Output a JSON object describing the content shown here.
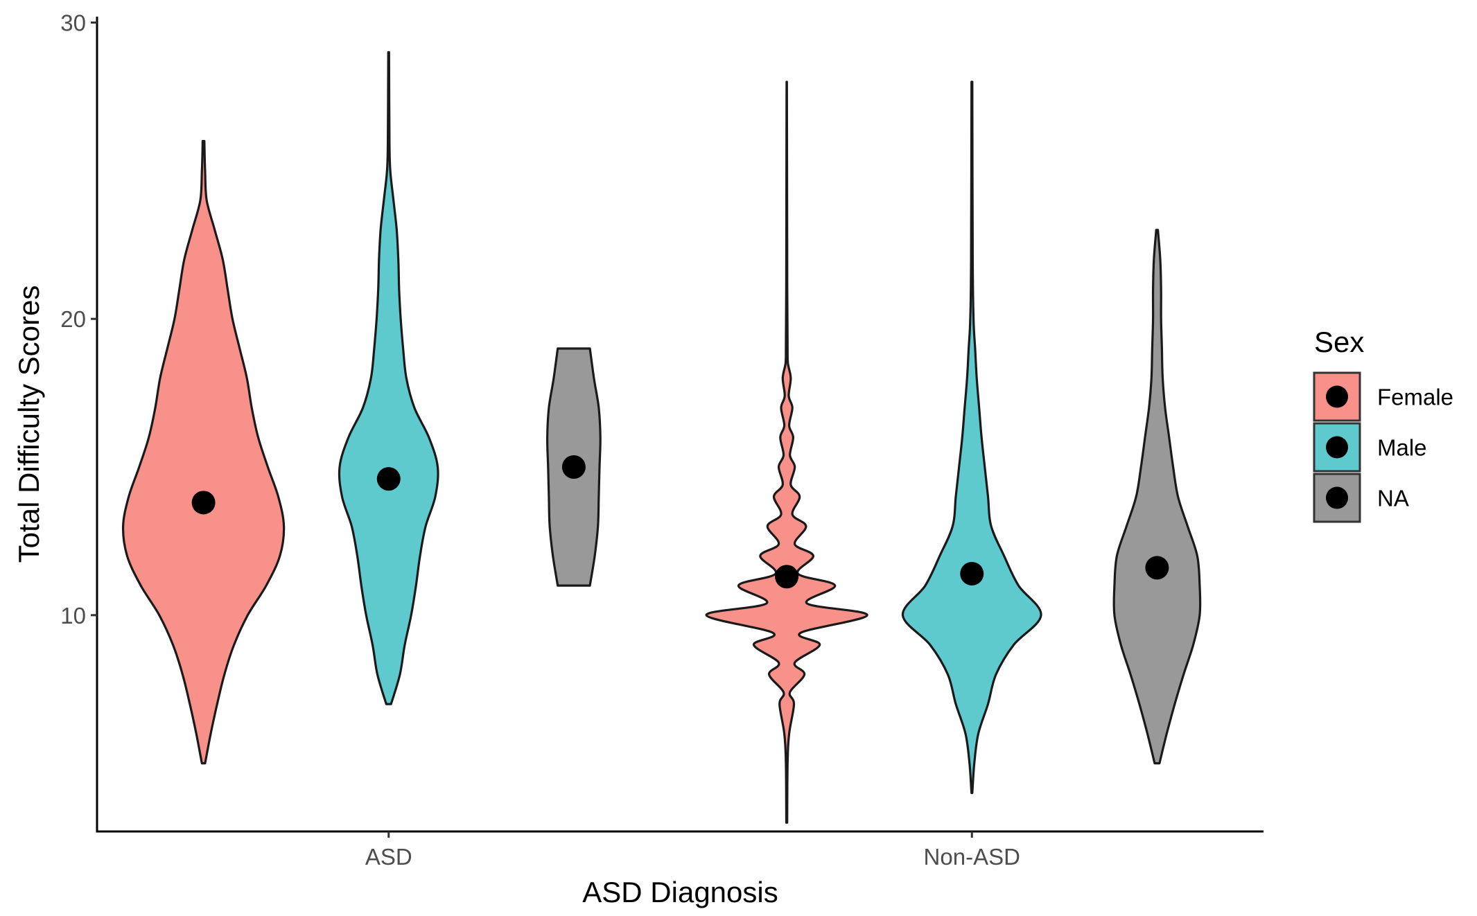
{
  "chart_data": {
    "type": "violin",
    "title": "",
    "xlabel": "ASD Diagnosis",
    "ylabel": "Total Difficulty Scores",
    "categories": [
      "ASD",
      "Non-ASD"
    ],
    "ylim": [
      2.7,
      30.2
    ],
    "yticks": [
      10,
      20,
      30
    ],
    "legend": {
      "title": "Sex",
      "position": "right",
      "entries": [
        "Female",
        "Male",
        "NA"
      ]
    },
    "series": [
      {
        "name": "Female",
        "color": "#F8918A",
        "violins": [
          {
            "category": "ASD",
            "min": 5,
            "max": 26,
            "mean": 13.8,
            "profile": [
              [
                5,
                0.02
              ],
              [
                6,
                0.09
              ],
              [
                7,
                0.17
              ],
              [
                8,
                0.26
              ],
              [
                9,
                0.38
              ],
              [
                10,
                0.55
              ],
              [
                11,
                0.78
              ],
              [
                12,
                0.95
              ],
              [
                13,
                1.0
              ],
              [
                14,
                0.93
              ],
              [
                15,
                0.8
              ],
              [
                16,
                0.68
              ],
              [
                17,
                0.6
              ],
              [
                18,
                0.54
              ],
              [
                19,
                0.45
              ],
              [
                20,
                0.36
              ],
              [
                21,
                0.3
              ],
              [
                22,
                0.24
              ],
              [
                23,
                0.14
              ],
              [
                24,
                0.04
              ],
              [
                25,
                0.02
              ],
              [
                26,
                0.01
              ]
            ]
          },
          {
            "category": "Non-ASD",
            "min": 3,
            "max": 28,
            "mean": 11.3,
            "profile": [
              [
                3,
                0.005
              ],
              [
                5,
                0.01
              ],
              [
                6,
                0.03
              ],
              [
                7,
                0.09
              ],
              [
                7.4,
                0.04
              ],
              [
                8,
                0.22
              ],
              [
                8.4,
                0.1
              ],
              [
                9,
                0.41
              ],
              [
                9.4,
                0.17
              ],
              [
                10,
                1.0
              ],
              [
                10.4,
                0.25
              ],
              [
                11,
                0.6
              ],
              [
                11.4,
                0.14
              ],
              [
                12,
                0.33
              ],
              [
                12.4,
                0.1
              ],
              [
                13,
                0.24
              ],
              [
                13.4,
                0.07
              ],
              [
                14,
                0.16
              ],
              [
                14.4,
                0.05
              ],
              [
                15,
                0.1
              ],
              [
                15.4,
                0.04
              ],
              [
                16,
                0.08
              ],
              [
                16.4,
                0.03
              ],
              [
                17,
                0.07
              ],
              [
                17.4,
                0.025
              ],
              [
                18,
                0.05
              ],
              [
                18.5,
                0.015
              ],
              [
                19,
                0.01
              ],
              [
                21,
                0.006
              ],
              [
                24,
                0.004
              ],
              [
                28,
                0.002
              ]
            ]
          }
        ]
      },
      {
        "name": "Male",
        "color": "#5FCACE",
        "violins": [
          {
            "category": "ASD",
            "min": 7,
            "max": 29,
            "mean": 14.6,
            "profile": [
              [
                7,
                0.03
              ],
              [
                8,
                0.14
              ],
              [
                9,
                0.2
              ],
              [
                10,
                0.28
              ],
              [
                11,
                0.34
              ],
              [
                12,
                0.39
              ],
              [
                13,
                0.46
              ],
              [
                14,
                0.58
              ],
              [
                15,
                0.61
              ],
              [
                16,
                0.5
              ],
              [
                17,
                0.32
              ],
              [
                18,
                0.22
              ],
              [
                19,
                0.18
              ],
              [
                20,
                0.15
              ],
              [
                21,
                0.13
              ],
              [
                22,
                0.12
              ],
              [
                23,
                0.1
              ],
              [
                24,
                0.06
              ],
              [
                25,
                0.02
              ],
              [
                26,
                0.01
              ],
              [
                29,
                0.005
              ]
            ]
          },
          {
            "category": "Non-ASD",
            "min": 4,
            "max": 28,
            "mean": 11.4,
            "profile": [
              [
                4,
                0.005
              ],
              [
                5,
                0.03
              ],
              [
                6,
                0.08
              ],
              [
                7,
                0.2
              ],
              [
                8,
                0.3
              ],
              [
                9,
                0.52
              ],
              [
                10,
                0.86
              ],
              [
                11,
                0.58
              ],
              [
                12,
                0.4
              ],
              [
                13,
                0.24
              ],
              [
                14,
                0.2
              ],
              [
                15,
                0.16
              ],
              [
                16,
                0.12
              ],
              [
                17,
                0.09
              ],
              [
                18,
                0.06
              ],
              [
                19,
                0.04
              ],
              [
                20,
                0.02
              ],
              [
                22,
                0.01
              ],
              [
                28,
                0.005
              ]
            ]
          }
        ]
      },
      {
        "name": "NA",
        "color": "#999999",
        "violins": [
          {
            "category": "ASD",
            "min": 11,
            "max": 19,
            "mean": 15.0,
            "flat_ends": true,
            "profile": [
              [
                11,
                0.2
              ],
              [
                12,
                0.26
              ],
              [
                13,
                0.3
              ],
              [
                14,
                0.31
              ],
              [
                15,
                0.32
              ],
              [
                16,
                0.33
              ],
              [
                17,
                0.31
              ],
              [
                18,
                0.25
              ],
              [
                19,
                0.2
              ]
            ]
          },
          {
            "category": "Non-ASD",
            "min": 5,
            "max": 23,
            "mean": 11.6,
            "profile": [
              [
                5,
                0.03
              ],
              [
                6,
                0.12
              ],
              [
                7,
                0.22
              ],
              [
                8,
                0.33
              ],
              [
                9,
                0.45
              ],
              [
                10,
                0.53
              ],
              [
                11,
                0.53
              ],
              [
                12,
                0.5
              ],
              [
                13,
                0.38
              ],
              [
                14,
                0.26
              ],
              [
                15,
                0.2
              ],
              [
                16,
                0.15
              ],
              [
                17,
                0.1
              ],
              [
                18,
                0.07
              ],
              [
                19,
                0.06
              ],
              [
                20,
                0.05
              ],
              [
                21,
                0.05
              ],
              [
                22,
                0.04
              ],
              [
                23,
                0.01
              ]
            ]
          }
        ]
      }
    ]
  }
}
